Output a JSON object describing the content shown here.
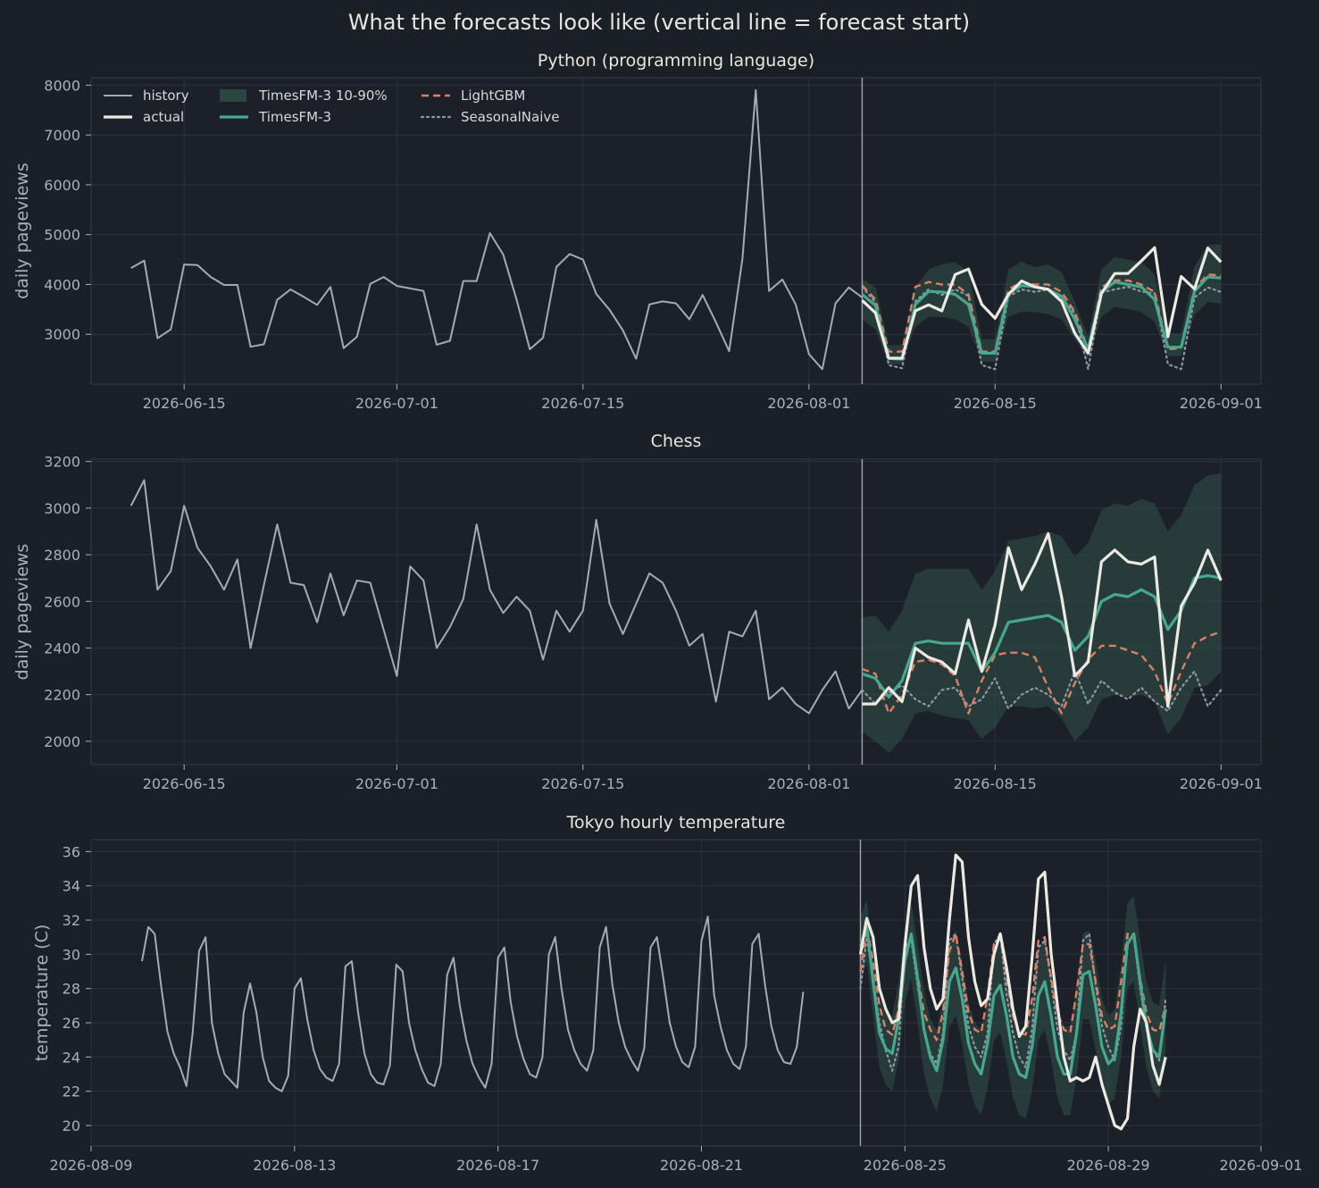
{
  "figure": {
    "title": "What the forecasts look like (vertical line = forecast start)",
    "background": "#1b1f26",
    "panel_background": "#1c2028",
    "grid_color": "#2c323c"
  },
  "legend": {
    "placement": "upper-left of first panel",
    "items": [
      {
        "label": "history",
        "key": "history"
      },
      {
        "label": "actual",
        "key": "actual"
      },
      {
        "label": "TimesFM-3 10-90%",
        "key": "band"
      },
      {
        "label": "TimesFM-3",
        "key": "timesfm"
      },
      {
        "label": "LightGBM",
        "key": "lightgbm"
      },
      {
        "label": "SeasonalNaive",
        "key": "naive"
      }
    ]
  },
  "styles": {
    "history": {
      "color": "#a3abbb",
      "width": 2,
      "dash": ""
    },
    "actual": {
      "color": "#ece9e2",
      "width": 3.2,
      "dash": ""
    },
    "band": {
      "color": "#2f5046",
      "opacity": 0.6
    },
    "timesfm": {
      "color": "#46a88e",
      "width": 3.2,
      "dash": ""
    },
    "lightgbm": {
      "color": "#de7e62",
      "width": 2.4,
      "dash": "8,5"
    },
    "naive": {
      "color": "#8f96a2",
      "width": 2.2,
      "dash": "2,4"
    }
  },
  "chart_data": [
    {
      "type": "line",
      "title": "Python (programming language)",
      "ylabel": "daily pageviews",
      "x_type": "date",
      "xlim": [
        "2026-06-08",
        "2026-09-04"
      ],
      "ylim": [
        2000,
        8150
      ],
      "yticks": [
        3000,
        4000,
        5000,
        6000,
        7000,
        8000
      ],
      "xticks": [
        "2026-06-15",
        "2026-07-01",
        "2026-07-15",
        "2026-08-01",
        "2026-08-15",
        "2026-09-01"
      ],
      "forecast_start": "2026-08-05",
      "history": {
        "start": "2026-06-11",
        "step_days": 1,
        "values": [
          4330,
          4480,
          2920,
          3100,
          4400,
          4390,
          4150,
          3990,
          3990,
          2750,
          2800,
          3690,
          3900,
          3750,
          3590,
          3950,
          2720,
          2950,
          4010,
          4150,
          3970,
          3920,
          3870,
          2790,
          2870,
          4070,
          4070,
          5030,
          4600,
          3700,
          2700,
          2930,
          4350,
          4610,
          4500,
          3810,
          3490,
          3080,
          2510,
          3600,
          3660,
          3620,
          3300,
          3790,
          3240,
          2660,
          4520,
          7900,
          3870,
          4100,
          3600,
          2600,
          2300,
          3620,
          3940,
          3740
        ]
      },
      "actual": {
        "start": "2026-08-05",
        "step_days": 1,
        "values": [
          3680,
          3430,
          2520,
          2520,
          3470,
          3590,
          3470,
          4200,
          4310,
          3600,
          3320,
          3800,
          4070,
          3950,
          3900,
          3660,
          3020,
          2620,
          3820,
          4220,
          4220,
          4470,
          4740,
          2950,
          4160,
          3910,
          4730,
          4450
        ]
      },
      "timesfm": {
        "start": "2026-08-05",
        "step_days": 1,
        "values": [
          3800,
          3580,
          2520,
          2500,
          3600,
          3860,
          3850,
          3800,
          3600,
          2620,
          2620,
          3820,
          3980,
          3950,
          3900,
          3760,
          3300,
          2700,
          3850,
          4050,
          4000,
          3950,
          3700,
          2740,
          2740,
          3860,
          4150,
          4130
        ]
      },
      "band_low": {
        "start": "2026-08-05",
        "step_days": 1,
        "values": [
          3300,
          3100,
          2400,
          2400,
          3150,
          3350,
          3350,
          3300,
          3150,
          2450,
          2450,
          3350,
          3450,
          3450,
          3400,
          3300,
          2900,
          2500,
          3350,
          3550,
          3500,
          3450,
          3250,
          2560,
          2560,
          3380,
          3650,
          3620
        ]
      },
      "band_high": {
        "start": "2026-08-05",
        "step_days": 1,
        "values": [
          4100,
          3950,
          2780,
          2780,
          3950,
          4300,
          4400,
          4450,
          4250,
          2900,
          2900,
          4300,
          4450,
          4350,
          4400,
          4250,
          3650,
          2950,
          4300,
          4550,
          4500,
          4450,
          4200,
          3020,
          3020,
          4350,
          4800,
          4800
        ]
      },
      "lightgbm": {
        "start": "2026-08-05",
        "step_days": 1,
        "values": [
          3980,
          3700,
          2650,
          2650,
          3950,
          4050,
          4000,
          4000,
          3800,
          2650,
          2650,
          3900,
          4050,
          4000,
          4000,
          3850,
          3450,
          2680,
          3950,
          4080,
          4080,
          4000,
          3850,
          2700,
          2720,
          3920,
          4200,
          4180
        ]
      },
      "naive": {
        "start": "2026-08-05",
        "step_days": 1,
        "values": [
          3950,
          3640,
          2380,
          2320,
          3660,
          3900,
          3790,
          3900,
          3770,
          2380,
          2300,
          3760,
          3900,
          3850,
          3900,
          3740,
          3420,
          2300,
          3840,
          3900,
          3950,
          3860,
          3820,
          2400,
          2300,
          3740,
          3940,
          3850
        ]
      }
    },
    {
      "type": "line",
      "title": "Chess",
      "ylabel": "daily pageviews",
      "x_type": "date",
      "xlim": [
        "2026-06-08",
        "2026-09-04"
      ],
      "ylim": [
        1900,
        3210
      ],
      "yticks": [
        2000,
        2200,
        2400,
        2600,
        2800,
        3000,
        3200
      ],
      "xticks": [
        "2026-06-15",
        "2026-07-01",
        "2026-07-15",
        "2026-08-01",
        "2026-08-15",
        "2026-09-01"
      ],
      "forecast_start": "2026-08-05",
      "history": {
        "start": "2026-06-11",
        "step_days": 1,
        "values": [
          3010,
          3120,
          2650,
          2730,
          3010,
          2830,
          2750,
          2650,
          2780,
          2400,
          2670,
          2930,
          2680,
          2670,
          2510,
          2720,
          2540,
          2690,
          2680,
          2480,
          2280,
          2750,
          2690,
          2400,
          2490,
          2610,
          2930,
          2650,
          2550,
          2620,
          2560,
          2350,
          2560,
          2470,
          2560,
          2950,
          2590,
          2460,
          2590,
          2720,
          2680,
          2560,
          2410,
          2460,
          2170,
          2470,
          2450,
          2560,
          2180,
          2230,
          2160,
          2120,
          2220,
          2300,
          2140,
          2220
        ]
      },
      "actual": {
        "start": "2026-08-05",
        "step_days": 1,
        "values": [
          2160,
          2160,
          2230,
          2170,
          2400,
          2360,
          2340,
          2290,
          2520,
          2300,
          2500,
          2830,
          2650,
          2760,
          2890,
          2620,
          2280,
          2340,
          2770,
          2820,
          2770,
          2760,
          2790,
          2150,
          2580,
          2680,
          2820,
          2690
        ]
      },
      "timesfm": {
        "start": "2026-08-05",
        "step_days": 1,
        "values": [
          2290,
          2270,
          2190,
          2260,
          2420,
          2430,
          2420,
          2420,
          2420,
          2300,
          2380,
          2510,
          2520,
          2530,
          2540,
          2510,
          2390,
          2450,
          2600,
          2630,
          2620,
          2650,
          2620,
          2480,
          2560,
          2700,
          2710,
          2700
        ]
      },
      "band_low": {
        "start": "2026-08-05",
        "step_days": 1,
        "values": [
          2040,
          2000,
          1950,
          2010,
          2120,
          2130,
          2110,
          2100,
          2090,
          2010,
          2060,
          2150,
          2150,
          2140,
          2150,
          2100,
          2000,
          2060,
          2180,
          2200,
          2190,
          2200,
          2170,
          2030,
          2100,
          2230,
          2240,
          2300
        ]
      },
      "band_high": {
        "start": "2026-08-05",
        "step_days": 1,
        "values": [
          2530,
          2540,
          2470,
          2560,
          2720,
          2740,
          2740,
          2740,
          2740,
          2650,
          2730,
          2860,
          2870,
          2880,
          2900,
          2880,
          2790,
          2850,
          2990,
          3020,
          3010,
          3040,
          3020,
          2900,
          2970,
          3100,
          3140,
          3150
        ]
      },
      "lightgbm": {
        "start": "2026-08-05",
        "step_days": 1,
        "values": [
          2310,
          2290,
          2120,
          2200,
          2340,
          2350,
          2330,
          2280,
          2120,
          2260,
          2370,
          2380,
          2380,
          2360,
          2230,
          2120,
          2250,
          2350,
          2410,
          2410,
          2390,
          2370,
          2300,
          2160,
          2300,
          2420,
          2450,
          2470
        ]
      },
      "naive": {
        "start": "2026-08-05",
        "step_days": 1,
        "values": [
          2220,
          2160,
          2210,
          2240,
          2180,
          2150,
          2220,
          2230,
          2150,
          2180,
          2270,
          2140,
          2200,
          2230,
          2200,
          2150,
          2300,
          2160,
          2260,
          2210,
          2180,
          2230,
          2170,
          2130,
          2230,
          2300,
          2150,
          2220
        ]
      }
    },
    {
      "type": "line",
      "title": "Tokyo hourly temperature",
      "ylabel": "temperature (C)",
      "x_type": "datetime",
      "xlim": [
        "2026-08-09T00:00",
        "2026-09-01T00:00"
      ],
      "ylim": [
        18.8,
        36.7
      ],
      "yticks": [
        20,
        22,
        24,
        26,
        28,
        30,
        32,
        34,
        36
      ],
      "xticks": [
        "2026-08-09",
        "2026-08-13",
        "2026-08-17",
        "2026-08-21",
        "2026-08-25",
        "2026-08-29",
        "2026-09-01"
      ],
      "forecast_start": "2026-08-24T03:00",
      "history": {
        "start": "2026-08-10T00:00",
        "step_hours": 3,
        "values": [
          29.6,
          31.6,
          31.2,
          28.2,
          25.5,
          24.2,
          23.4,
          22.3,
          25.5,
          30.2,
          31.0,
          26.0,
          24.2,
          23.0,
          22.6,
          22.2,
          26.6,
          28.3,
          26.6,
          24.0,
          22.6,
          22.2,
          22.0,
          22.9,
          28.0,
          28.6,
          26.2,
          24.4,
          23.3,
          22.8,
          22.6,
          23.6,
          29.3,
          29.6,
          26.6,
          24.2,
          23.0,
          22.5,
          22.4,
          23.5,
          29.4,
          29.0,
          26.0,
          24.4,
          23.3,
          22.5,
          22.3,
          23.6,
          28.8,
          29.8,
          27.0,
          25.0,
          23.6,
          22.8,
          22.2,
          23.6,
          29.8,
          30.4,
          27.2,
          25.2,
          23.9,
          23.0,
          22.8,
          24.0,
          30.0,
          31.0,
          28.0,
          25.6,
          24.4,
          23.6,
          23.2,
          24.4,
          30.4,
          31.6,
          28.2,
          26.0,
          24.6,
          23.8,
          23.2,
          24.5,
          30.4,
          31.0,
          28.6,
          26.0,
          24.6,
          23.7,
          23.4,
          24.6,
          30.8,
          32.2,
          27.6,
          25.8,
          24.4,
          23.6,
          23.3,
          24.6,
          30.6,
          31.2,
          28.2,
          25.8,
          24.4,
          23.7,
          23.6,
          24.6,
          27.8
        ]
      },
      "actual": {
        "start": "2026-08-24T03:00",
        "step_hours": 3,
        "values": [
          30.0,
          32.1,
          31.0,
          28.0,
          26.8,
          26.0,
          26.2,
          30.5,
          34.0,
          34.6,
          30.4,
          28.0,
          26.8,
          27.4,
          32.0,
          35.8,
          35.4,
          31.0,
          28.4,
          27.0,
          27.4,
          30.0,
          31.2,
          29.2,
          26.8,
          25.2,
          25.8,
          29.8,
          34.4,
          34.8,
          30.0,
          27.0,
          24.0,
          22.6,
          22.8,
          22.6,
          22.8,
          24.0,
          22.4,
          21.2,
          20.0,
          19.8,
          20.4,
          24.6,
          26.8,
          26.0,
          23.5,
          22.4,
          24.0
        ]
      },
      "timesfm": {
        "start": "2026-08-24T03:00",
        "step_hours": 3,
        "values": [
          30.5,
          31.6,
          28.4,
          25.4,
          24.5,
          24.2,
          26.2,
          29.6,
          31.2,
          28.6,
          25.6,
          24.0,
          23.2,
          25.0,
          28.4,
          29.2,
          27.4,
          24.8,
          23.6,
          23.0,
          24.8,
          27.6,
          28.2,
          26.4,
          24.0,
          23.0,
          22.8,
          24.6,
          27.6,
          28.4,
          26.4,
          24.0,
          23.0,
          23.0,
          25.4,
          28.8,
          29.0,
          27.0,
          24.6,
          23.6,
          24.0,
          26.6,
          30.6,
          31.2,
          28.4,
          25.8,
          24.4,
          24.0,
          26.8
        ]
      },
      "band_low": {
        "start": "2026-08-24T03:00",
        "step_hours": 3,
        "values": [
          28.3,
          29.5,
          26.4,
          23.4,
          22.4,
          22.0,
          23.8,
          27.2,
          28.6,
          26.0,
          23.0,
          21.6,
          20.8,
          22.4,
          25.8,
          26.4,
          24.8,
          22.4,
          21.2,
          20.6,
          22.2,
          25.0,
          25.4,
          23.8,
          21.6,
          20.6,
          20.4,
          22.0,
          25.0,
          25.6,
          23.8,
          21.6,
          20.6,
          20.6,
          22.8,
          26.2,
          26.2,
          24.4,
          22.2,
          21.2,
          21.6,
          24.0,
          28.0,
          28.4,
          25.8,
          23.4,
          22.0,
          21.6,
          24.2
        ]
      },
      "band_high": {
        "start": "2026-08-24T03:00",
        "step_hours": 3,
        "values": [
          32.2,
          33.2,
          30.2,
          27.4,
          26.6,
          26.4,
          28.4,
          31.6,
          33.0,
          30.6,
          27.8,
          26.2,
          25.6,
          27.4,
          30.6,
          31.4,
          29.6,
          27.2,
          26.0,
          25.6,
          27.4,
          30.0,
          30.6,
          28.8,
          26.6,
          25.6,
          25.6,
          27.4,
          30.2,
          31.0,
          29.0,
          26.8,
          25.8,
          25.8,
          28.2,
          31.2,
          31.4,
          29.6,
          27.4,
          26.4,
          26.8,
          29.4,
          33.0,
          33.4,
          30.8,
          28.4,
          27.2,
          27.0,
          29.6
        ]
      },
      "lightgbm": {
        "start": "2026-08-24T03:00",
        "step_hours": 3,
        "values": [
          29.0,
          31.6,
          29.6,
          27.0,
          25.6,
          25.3,
          26.8,
          30.4,
          31.0,
          28.8,
          26.6,
          25.6,
          25.0,
          26.6,
          30.2,
          31.2,
          29.0,
          26.6,
          25.6,
          25.4,
          27.6,
          30.6,
          31.0,
          28.6,
          26.4,
          25.4,
          25.3,
          27.4,
          30.8,
          31.0,
          28.6,
          26.6,
          25.6,
          25.4,
          27.8,
          30.6,
          30.6,
          28.4,
          26.4,
          25.6,
          25.8,
          28.4,
          31.2,
          31.0,
          28.6,
          26.6,
          25.6,
          25.5,
          27.0
        ]
      },
      "naive": {
        "start": "2026-08-24T03:00",
        "step_hours": 3,
        "values": [
          28.0,
          31.0,
          28.6,
          26.0,
          24.4,
          23.2,
          24.6,
          30.4,
          30.8,
          28.2,
          25.6,
          24.2,
          23.6,
          25.4,
          30.8,
          31.2,
          28.6,
          25.8,
          24.6,
          24.0,
          25.4,
          30.6,
          31.2,
          27.6,
          25.4,
          24.0,
          23.4,
          25.6,
          30.4,
          30.8,
          28.4,
          25.6,
          24.4,
          23.8,
          25.4,
          30.8,
          31.2,
          28.2,
          25.8,
          24.6,
          23.8,
          25.8,
          31.0,
          31.0,
          28.0,
          25.6,
          24.4,
          23.8,
          27.4
        ]
      }
    }
  ]
}
